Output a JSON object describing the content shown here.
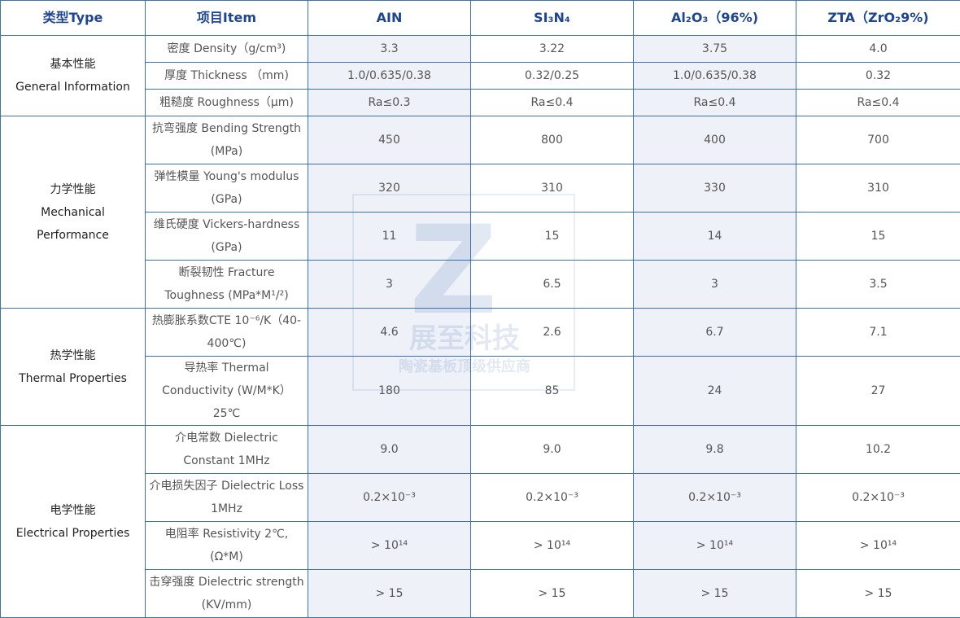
{
  "header": {
    "type": "类型Type",
    "item": "项目Item",
    "materials": [
      "AIN",
      "SI₃N₄",
      "Al₂O₃（96%)",
      "ZTA（ZrO₂9%)"
    ]
  },
  "groups": [
    {
      "label_cn": "基本性能",
      "label_en": "General Information",
      "rows": [
        {
          "item": "密度 Density（g/cm³)",
          "values": [
            "3.3",
            "3.22",
            "3.75",
            "4.0"
          ]
        },
        {
          "item": "厚度 Thickness （mm)",
          "values": [
            "1.0/0.635/0.38",
            "0.32/0.25",
            "1.0/0.635/0.38",
            "0.32"
          ]
        },
        {
          "item": "粗糙度 Roughness（μm)",
          "values": [
            "Ra≤0.3",
            "Ra≤0.4",
            "Ra≤0.4",
            "Ra≤0.4"
          ]
        }
      ]
    },
    {
      "label_cn": "力学性能",
      "label_en": "Mechanical Performance",
      "rows": [
        {
          "item": "抗弯强度 Bending Strength (MPa)",
          "values": [
            "450",
            "800",
            "400",
            "700"
          ]
        },
        {
          "item": "弹性模量 Young's modulus (GPa)",
          "values": [
            "320",
            "310",
            "330",
            "310"
          ]
        },
        {
          "item": "维氏硬度 Vickers-hardness (GPa)",
          "values": [
            "11",
            "15",
            "14",
            "15"
          ]
        },
        {
          "item": "断裂韧性 Fracture Toughness (MPa*M¹/²)",
          "values": [
            "3",
            "6.5",
            "3",
            "3.5"
          ]
        }
      ]
    },
    {
      "label_cn": "热学性能",
      "label_en": "Thermal Properties",
      "rows": [
        {
          "item": "热膨胀系数CTE 10⁻⁶/K（40-400℃)",
          "values": [
            "4.6",
            "2.6",
            "6.7",
            "7.1"
          ]
        },
        {
          "item": "导热率 Thermal Conductivity (W/M*K）25℃",
          "values": [
            "180",
            "85",
            "24",
            "27"
          ]
        }
      ]
    },
    {
      "label_cn": "电学性能",
      "label_en": "Electrical Properties",
      "rows": [
        {
          "item": "介电常数 Dielectric Constant 1MHz",
          "values": [
            "9.0",
            "9.0",
            "9.8",
            "10.2"
          ]
        },
        {
          "item": "介电损失因子 Dielectric Loss 1MHz",
          "values": [
            "0.2×10⁻³",
            "0.2×10⁻³",
            "0.2×10⁻³",
            "0.2×10⁻³"
          ]
        },
        {
          "item": "电阻率 Resistivity 2℃, (Ω*M)",
          "values": [
            "> 10¹⁴",
            "> 10¹⁴",
            "> 10¹⁴",
            "> 10¹⁴"
          ]
        },
        {
          "item": "击穿强度 Dielectric strength (KV/mm)",
          "values": [
            "> 15",
            "> 15",
            "> 15",
            "> 15"
          ]
        }
      ]
    }
  ],
  "watermark": {
    "mark": "Z",
    "name": "展至科技",
    "slogan": "陶瓷基板顶级供应商"
  }
}
